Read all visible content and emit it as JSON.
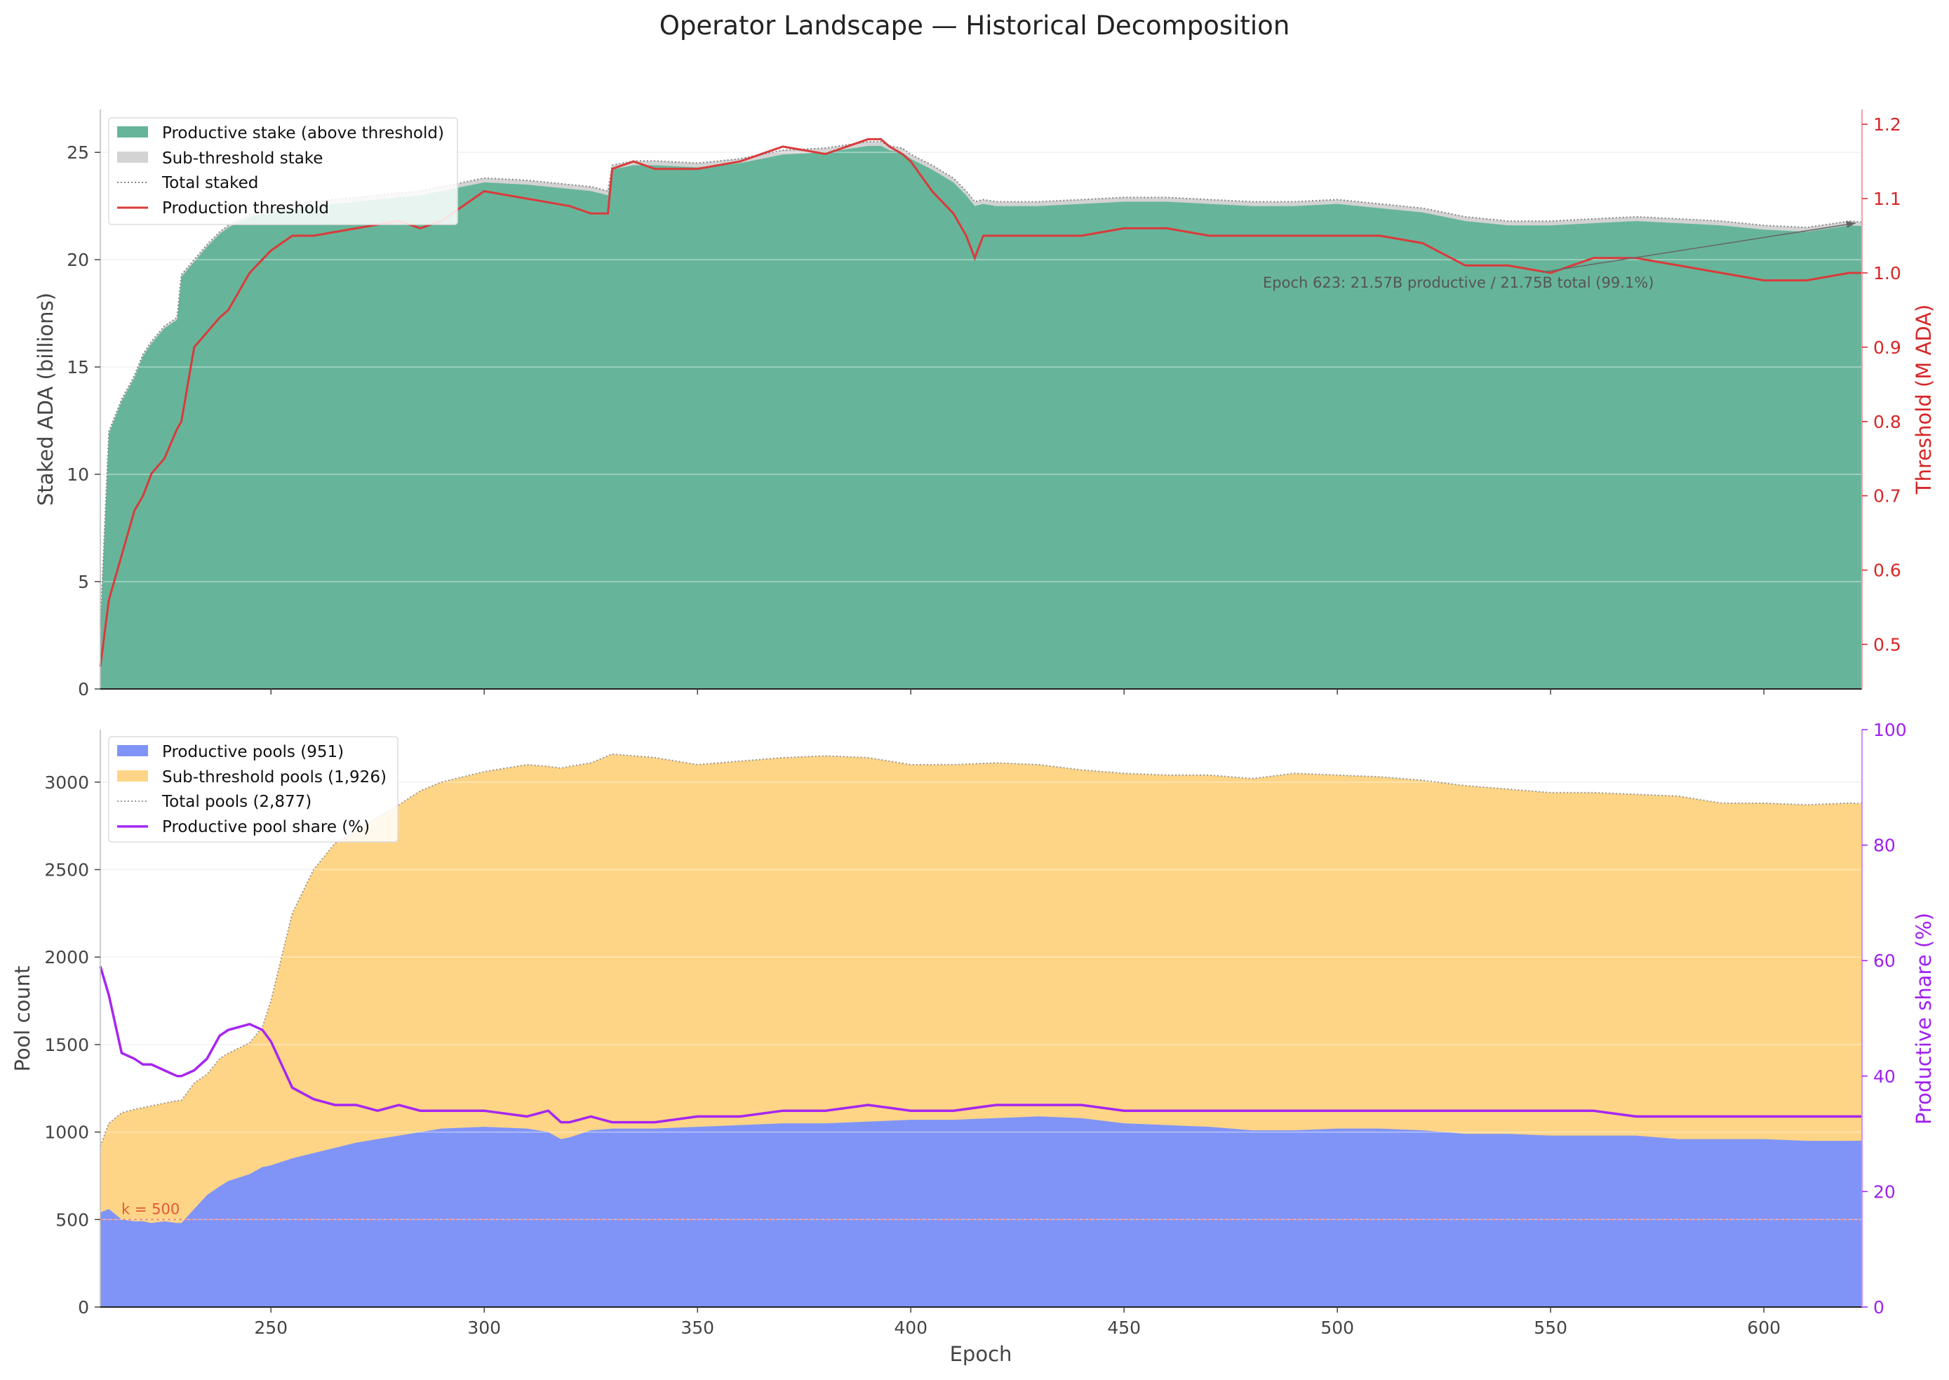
{
  "suptitle": "Operator Landscape — Historical Decomposition",
  "colors": {
    "productive_stake": "#66b59a",
    "sub_stake": "#d3d3d3",
    "threshold": "#d93b3b",
    "productive_pools": "#8094f8",
    "sub_pools": "#fed586",
    "share": "#a626f0",
    "k_line": "#f28b82"
  },
  "top_panel": {
    "ylabel_left": "Staked ADA (billions)",
    "ylabel_right": "Threshold (M ADA)",
    "legend": [
      "Productive stake (above threshold)",
      "Sub-threshold stake",
      "Total staked",
      "Production threshold"
    ],
    "annotation": "Epoch 623: 21.57B productive / 21.75B total (99.1%)"
  },
  "bottom_panel": {
    "ylabel_left": "Pool count",
    "ylabel_right": "Productive share (%)",
    "xlabel": "Epoch",
    "legend": [
      "Productive pools (951)",
      "Sub-threshold pools (1,926)",
      "Total pools (2,877)",
      "Productive pool share (%)"
    ],
    "k_label": "k = 500"
  },
  "chart_data": [
    {
      "type": "area",
      "panel": "top",
      "xlim": [
        210,
        623
      ],
      "ylim": [
        0,
        27
      ],
      "ylim_right": [
        0.44,
        1.22
      ],
      "xticks": [
        250,
        300,
        350,
        400,
        450,
        500,
        550,
        600
      ],
      "yticks": [
        0,
        5,
        10,
        15,
        20,
        25
      ],
      "yticks_right": [
        0.5,
        0.6,
        0.7,
        0.8,
        0.9,
        1.0,
        1.1,
        1.2
      ],
      "grid": "horizontal",
      "legend_position": "upper left",
      "x": [
        210,
        212,
        215,
        218,
        220,
        222,
        225,
        228,
        229,
        232,
        235,
        238,
        240,
        245,
        250,
        255,
        260,
        270,
        280,
        285,
        290,
        300,
        310,
        320,
        325,
        329,
        330,
        335,
        340,
        350,
        360,
        370,
        380,
        390,
        393,
        395,
        398,
        400,
        405,
        410,
        413,
        415,
        417,
        420,
        430,
        440,
        450,
        460,
        470,
        480,
        490,
        500,
        510,
        520,
        530,
        540,
        550,
        560,
        570,
        580,
        590,
        600,
        610,
        620,
        623
      ],
      "series": [
        {
          "name": "Total staked",
          "values": [
            3.0,
            12.0,
            13.5,
            14.6,
            15.6,
            16.2,
            16.9,
            17.3,
            19.3,
            20.0,
            20.7,
            21.3,
            21.6,
            22.1,
            22.4,
            22.6,
            22.7,
            22.9,
            23.1,
            23.2,
            23.4,
            23.8,
            23.7,
            23.5,
            23.4,
            23.2,
            24.4,
            24.6,
            24.6,
            24.5,
            24.7,
            25.1,
            25.2,
            25.5,
            25.5,
            25.3,
            25.2,
            24.9,
            24.4,
            23.8,
            23.2,
            22.7,
            22.8,
            22.7,
            22.7,
            22.8,
            22.9,
            22.9,
            22.8,
            22.7,
            22.7,
            22.8,
            22.6,
            22.4,
            22.0,
            21.8,
            21.8,
            21.9,
            22.0,
            21.9,
            21.8,
            21.6,
            21.5,
            21.8,
            21.75
          ]
        },
        {
          "name": "Productive stake (above threshold)",
          "values": [
            2.9,
            11.9,
            13.4,
            14.5,
            15.5,
            16.1,
            16.8,
            17.2,
            19.2,
            19.9,
            20.6,
            21.2,
            21.5,
            22.0,
            22.2,
            22.4,
            22.5,
            22.7,
            22.9,
            23.0,
            23.2,
            23.6,
            23.5,
            23.3,
            23.2,
            23.0,
            24.2,
            24.4,
            24.4,
            24.3,
            24.5,
            24.9,
            25.0,
            25.3,
            25.3,
            25.1,
            25.0,
            24.7,
            24.2,
            23.6,
            23.0,
            22.5,
            22.6,
            22.5,
            22.5,
            22.6,
            22.7,
            22.7,
            22.6,
            22.5,
            22.5,
            22.6,
            22.4,
            22.2,
            21.8,
            21.6,
            21.6,
            21.7,
            21.8,
            21.7,
            21.6,
            21.4,
            21.3,
            21.6,
            21.57
          ]
        },
        {
          "name": "Production threshold",
          "values": [
            0.47,
            0.56,
            0.62,
            0.68,
            0.7,
            0.73,
            0.75,
            0.79,
            0.8,
            0.9,
            0.92,
            0.94,
            0.95,
            1.0,
            1.03,
            1.05,
            1.05,
            1.06,
            1.07,
            1.06,
            1.07,
            1.11,
            1.1,
            1.09,
            1.08,
            1.08,
            1.14,
            1.15,
            1.14,
            1.14,
            1.15,
            1.17,
            1.16,
            1.18,
            1.18,
            1.17,
            1.16,
            1.15,
            1.11,
            1.08,
            1.05,
            1.02,
            1.05,
            1.05,
            1.05,
            1.05,
            1.06,
            1.06,
            1.05,
            1.05,
            1.05,
            1.05,
            1.05,
            1.04,
            1.01,
            1.01,
            1.0,
            1.02,
            1.02,
            1.01,
            1.0,
            0.99,
            0.99,
            1.0,
            1.0
          ]
        }
      ]
    },
    {
      "type": "area",
      "panel": "bottom",
      "xlabel": "Epoch",
      "xlim": [
        210,
        623
      ],
      "ylim": [
        0,
        3300
      ],
      "ylim_right": [
        0,
        100
      ],
      "xticks": [
        250,
        300,
        350,
        400,
        450,
        500,
        550,
        600
      ],
      "yticks": [
        0,
        500,
        1000,
        1500,
        2000,
        2500,
        3000
      ],
      "yticks_right": [
        0,
        20,
        40,
        60,
        80,
        100
      ],
      "grid": "horizontal",
      "legend_position": "upper left",
      "k_line": 500,
      "x": [
        210,
        212,
        215,
        218,
        220,
        222,
        225,
        228,
        229,
        232,
        235,
        238,
        240,
        245,
        248,
        250,
        255,
        260,
        265,
        270,
        275,
        280,
        285,
        290,
        300,
        310,
        315,
        318,
        320,
        325,
        330,
        340,
        350,
        360,
        370,
        380,
        390,
        400,
        410,
        420,
        430,
        440,
        450,
        460,
        470,
        480,
        490,
        500,
        510,
        520,
        530,
        540,
        550,
        560,
        570,
        580,
        590,
        600,
        610,
        620,
        623
      ],
      "series": [
        {
          "name": "Total pools",
          "values": [
            920,
            1050,
            1110,
            1130,
            1140,
            1150,
            1165,
            1180,
            1180,
            1280,
            1330,
            1420,
            1450,
            1510,
            1600,
            1750,
            2250,
            2500,
            2650,
            2720,
            2800,
            2870,
            2950,
            3000,
            3060,
            3100,
            3090,
            3080,
            3090,
            3110,
            3160,
            3140,
            3100,
            3120,
            3140,
            3150,
            3140,
            3100,
            3100,
            3110,
            3100,
            3070,
            3050,
            3040,
            3040,
            3020,
            3050,
            3040,
            3030,
            3010,
            2980,
            2960,
            2940,
            2940,
            2930,
            2920,
            2880,
            2880,
            2870,
            2880,
            2877
          ]
        },
        {
          "name": "Productive pools",
          "values": [
            540,
            560,
            500,
            490,
            490,
            480,
            490,
            480,
            480,
            560,
            640,
            690,
            720,
            760,
            800,
            810,
            850,
            880,
            910,
            940,
            960,
            980,
            1000,
            1020,
            1030,
            1020,
            1000,
            960,
            970,
            1010,
            1020,
            1020,
            1030,
            1040,
            1050,
            1050,
            1060,
            1070,
            1070,
            1080,
            1090,
            1080,
            1050,
            1040,
            1030,
            1010,
            1010,
            1020,
            1020,
            1010,
            990,
            990,
            980,
            980,
            980,
            960,
            960,
            960,
            950,
            950,
            951
          ]
        },
        {
          "name": "Productive pool share (%)",
          "values": [
            59,
            54,
            44,
            43,
            42,
            42,
            41,
            40,
            40,
            41,
            43,
            47,
            48,
            49,
            48,
            46,
            38,
            36,
            35,
            35,
            34,
            35,
            34,
            34,
            34,
            33,
            34,
            32,
            32,
            33,
            32,
            32,
            33,
            33,
            34,
            34,
            35,
            34,
            34,
            35,
            35,
            35,
            34,
            34,
            34,
            34,
            34,
            34,
            34,
            34,
            34,
            34,
            34,
            34,
            33,
            33,
            33,
            33,
            33,
            33,
            33
          ]
        }
      ]
    }
  ]
}
